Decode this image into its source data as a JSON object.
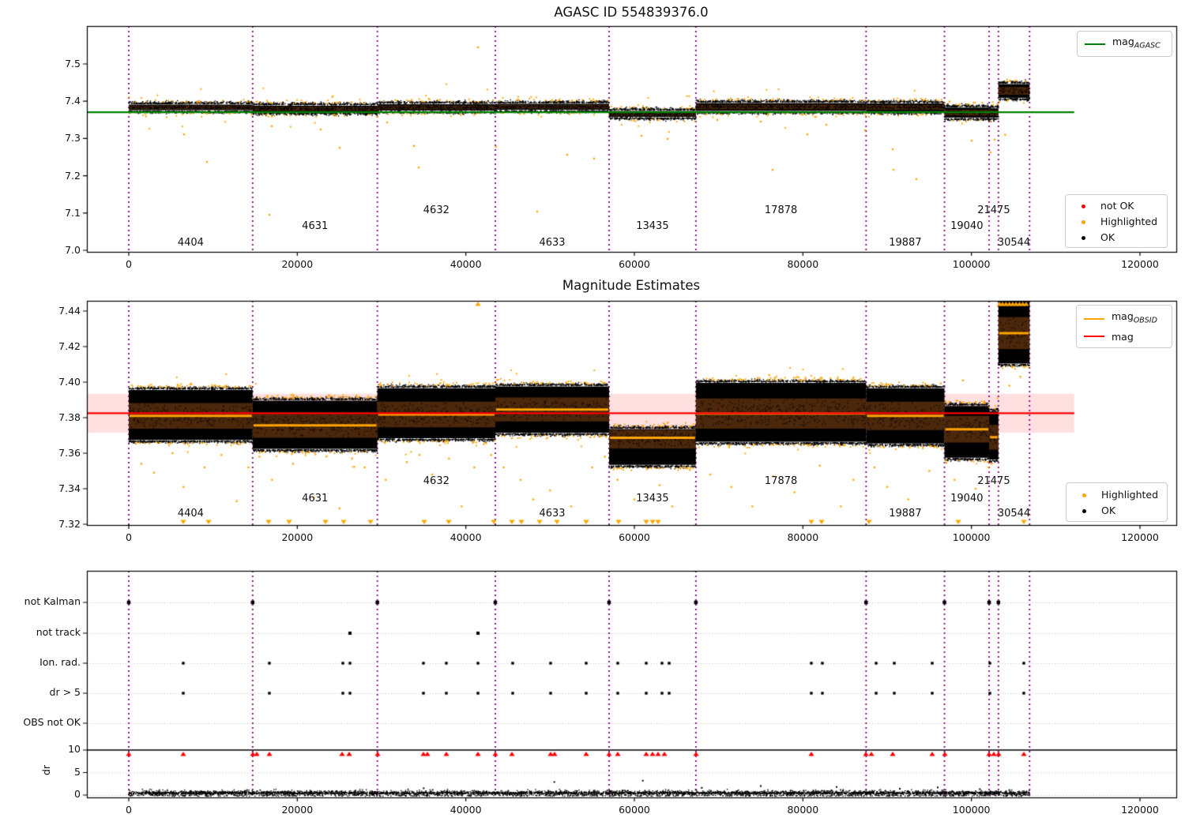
{
  "colors": {
    "green": "#008000",
    "orange": "#ffa500",
    "red": "#ff0000",
    "purple": "#800080",
    "black": "#000000",
    "pink_band": "rgba(255,0,0,0.12)",
    "band_brown": "rgba(150,78,22,0.5)",
    "grid_gray": "#c3c3c3"
  },
  "chart_data": {
    "type": "scatter",
    "x_axis": {
      "ticks": [
        0,
        20000,
        40000,
        60000,
        80000,
        100000,
        120000
      ],
      "range": [
        -4970,
        124310
      ]
    },
    "segment_boundaries": [
      0,
      14700,
      29500,
      43500,
      57000,
      67300,
      87500,
      96800,
      102100,
      103200,
      106900
    ],
    "segments": [
      {
        "obsid": "4404",
        "u0": 0,
        "u1": 14700,
        "top_band": [
          7.374,
          7.393
        ],
        "mid_band": [
          7.367,
          7.396
        ],
        "mag_obsid": 7.381
      },
      {
        "obsid": "4631",
        "u0": 14700,
        "u1": 29500,
        "top_band": [
          7.369,
          7.39
        ],
        "mid_band": [
          7.362,
          7.39
        ],
        "mag_obsid": 7.3757
      },
      {
        "obsid": "4632",
        "u0": 29500,
        "u1": 43500,
        "top_band": [
          7.373,
          7.394
        ],
        "mid_band": [
          7.368,
          7.397
        ],
        "mag_obsid": 7.3818
      },
      {
        "obsid": "4633",
        "u0": 43500,
        "u1": 57000,
        "top_band": [
          7.375,
          7.395
        ],
        "mid_band": [
          7.371,
          7.398
        ],
        "mag_obsid": 7.3846
      },
      {
        "obsid": "13435",
        "u0": 57000,
        "u1": 67300,
        "top_band": [
          7.356,
          7.376
        ],
        "mid_band": [
          7.353,
          7.374
        ],
        "mag_obsid": 7.3687
      },
      {
        "obsid": "17878",
        "u0": 67300,
        "u1": 87500,
        "top_band": [
          7.372,
          7.397
        ],
        "mid_band": [
          7.366,
          7.4
        ],
        "mag_obsid": 7.3823
      },
      {
        "obsid": "19887",
        "u0": 87500,
        "u1": 96800,
        "top_band": [
          7.371,
          7.396
        ],
        "mid_band": [
          7.365,
          7.397
        ],
        "mag_obsid": 7.381
      },
      {
        "obsid": "19040",
        "u0": 96800,
        "u1": 102100,
        "top_band": [
          7.354,
          7.385
        ],
        "mid_band": [
          7.357,
          7.387
        ],
        "mag_obsid": 7.3735
      },
      {
        "obsid": "21475",
        "u0": 102100,
        "u1": 103200,
        "top_band": [
          7.354,
          7.383
        ],
        "mid_band": [
          7.356,
          7.384
        ],
        "mag_obsid": 7.369
      },
      {
        "obsid": "30544",
        "u0": 103200,
        "u1": 106900,
        "top_band": [
          7.407,
          7.448
        ],
        "mid_band": [
          7.41,
          7.446
        ],
        "mag_obsid": 7.4276
      }
    ],
    "top_plot": {
      "title": "AGASC ID 554839376.0",
      "yticks": [
        7.0,
        7.1,
        7.2,
        7.3,
        7.4,
        7.5
      ],
      "ylim": [
        6.996,
        7.602
      ],
      "mag_agasc": 7.3705,
      "line_end_u": 112200,
      "orange_outliers": [
        [
          6563,
          7.311
        ],
        [
          9281,
          7.237
        ],
        [
          16688,
          7.095
        ],
        [
          16969,
          7.333
        ],
        [
          22781,
          7.324
        ],
        [
          25031,
          7.275
        ],
        [
          30656,
          7.343
        ],
        [
          33844,
          7.28
        ],
        [
          34406,
          7.222
        ],
        [
          41438,
          7.545
        ],
        [
          43594,
          7.278
        ],
        [
          48469,
          7.104
        ],
        [
          52031,
          7.256
        ],
        [
          55219,
          7.246
        ],
        [
          60844,
          7.307
        ],
        [
          63938,
          7.299
        ],
        [
          69844,
          7.35
        ],
        [
          75000,
          7.345
        ],
        [
          76406,
          7.216
        ],
        [
          80531,
          7.311
        ],
        [
          82781,
          7.337
        ],
        [
          87375,
          7.322
        ],
        [
          90656,
          7.271
        ],
        [
          90750,
          7.216
        ],
        [
          93469,
          7.191
        ],
        [
          100031,
          7.294
        ],
        [
          102281,
          7.263
        ],
        [
          102750,
          7.297
        ],
        [
          104000,
          7.31
        ]
      ]
    },
    "middle_plot": {
      "title": "Magnitude Estimates",
      "yticks": [
        7.32,
        7.34,
        7.36,
        7.38,
        7.4,
        7.42,
        7.44
      ],
      "ylim": [
        7.3196,
        7.4458
      ],
      "mag": 7.3825,
      "mag_err_band": [
        7.3715,
        7.3935
      ],
      "line_end_u": 112200,
      "orange_outliers": [
        [
          1500,
          7.354
        ],
        [
          3000,
          7.349
        ],
        [
          5200,
          7.36
        ],
        [
          6500,
          7.341
        ],
        [
          9000,
          7.352
        ],
        [
          11000,
          7.359
        ],
        [
          12800,
          7.333
        ],
        [
          14200,
          7.352
        ],
        [
          15500,
          7.358
        ],
        [
          17000,
          7.345
        ],
        [
          19500,
          7.354
        ],
        [
          21000,
          7.36
        ],
        [
          22000,
          7.335
        ],
        [
          25000,
          7.329
        ],
        [
          26500,
          7.357
        ],
        [
          28000,
          7.352
        ],
        [
          30500,
          7.345
        ],
        [
          33000,
          7.355
        ],
        [
          34500,
          7.359
        ],
        [
          36000,
          7.348
        ],
        [
          38000,
          7.357
        ],
        [
          39500,
          7.33
        ],
        [
          41000,
          7.352
        ],
        [
          43000,
          7.359
        ],
        [
          44500,
          7.352
        ],
        [
          46500,
          7.345
        ],
        [
          48000,
          7.334
        ],
        [
          50000,
          7.339
        ],
        [
          52500,
          7.33
        ],
        [
          55000,
          7.352
        ],
        [
          56500,
          7.358
        ],
        [
          58000,
          7.345
        ],
        [
          60000,
          7.334
        ],
        [
          61500,
          7.351
        ],
        [
          63000,
          7.342
        ],
        [
          64500,
          7.33
        ],
        [
          66000,
          7.352
        ],
        [
          69000,
          7.348
        ],
        [
          71500,
          7.341
        ],
        [
          74000,
          7.33
        ],
        [
          76000,
          7.404
        ],
        [
          76500,
          7.347
        ],
        [
          79000,
          7.338
        ],
        [
          82000,
          7.353
        ],
        [
          84500,
          7.33
        ],
        [
          86000,
          7.345
        ],
        [
          88500,
          7.352
        ],
        [
          90000,
          7.341
        ],
        [
          92500,
          7.334
        ],
        [
          95000,
          7.35
        ],
        [
          98000,
          7.345
        ],
        [
          99000,
          7.401
        ],
        [
          100500,
          7.34
        ],
        [
          102000,
          7.352
        ],
        [
          104500,
          7.398
        ],
        [
          105800,
          7.403
        ]
      ],
      "clip_bottom_u": [
        6469,
        9469,
        16594,
        19031,
        23344,
        25500,
        28688,
        35063,
        37969,
        43313,
        45469,
        46594,
        48750,
        50813,
        54281,
        58125,
        61406,
        62156,
        62813,
        81000,
        82219,
        87844,
        98438,
        106219
      ],
      "clip_top_u": [
        41438,
        103350,
        103700,
        104100,
        104500,
        104900,
        105300,
        105700,
        106100,
        106500
      ]
    },
    "bottom_plot": {
      "flag_rows": [
        "not Kalman",
        "not track",
        "Ion. rad.",
        "dr > 5",
        "OBS not OK"
      ],
      "ylabel": "dr",
      "dr_ticks": [
        10,
        5,
        0
      ],
      "not_kalman_u": [
        0,
        14700,
        29500,
        43500,
        57000,
        67300,
        87500,
        96800,
        102100,
        103200
      ],
      "not_track_u": [
        26250,
        41438
      ],
      "ion_rad_u": [
        6469,
        16688,
        25406,
        26250,
        34969,
        37688,
        41438,
        45563,
        50063,
        54281,
        58031,
        61406,
        63281,
        64125,
        81000,
        82313,
        88688,
        90844,
        95344,
        102188,
        106219
      ],
      "dr_gt5_u": [
        6469,
        16688,
        25406,
        26250,
        34969,
        37688,
        41438,
        45563,
        50063,
        54281,
        58031,
        61406,
        63281,
        64125,
        81000,
        82313,
        88688,
        90844,
        95344,
        102188,
        106219
      ],
      "dr10_red_u": [
        0,
        6469,
        14719,
        15188,
        16688,
        25313,
        26156,
        29531,
        34969,
        35438,
        37688,
        41438,
        43500,
        45469,
        50063,
        50531,
        54281,
        57000,
        58031,
        61406,
        62156,
        62813,
        63563,
        67313,
        81000,
        87469,
        88125,
        90656,
        95344,
        96844,
        102094,
        102656,
        103219,
        106219
      ],
      "dr_high_points": [
        [
          35000,
          1.5
        ],
        [
          50500,
          2.9
        ],
        [
          61000,
          3.2
        ],
        [
          68000,
          1.6
        ],
        [
          75000,
          2.0
        ],
        [
          84000,
          1.8
        ],
        [
          91500,
          1.4
        ],
        [
          96000,
          1.7
        ],
        [
          101000,
          1.3
        ],
        [
          104500,
          1.1
        ]
      ],
      "dr_cloud": {
        "u_min": 0,
        "u_max": 106900,
        "count": 2800
      }
    },
    "legends": {
      "top_line": [
        {
          "type": "line",
          "color": "#008000",
          "label": "mag",
          "sub": "AGASC"
        }
      ],
      "top_points": [
        {
          "type": "dot",
          "color": "#ff0000",
          "label": "not OK"
        },
        {
          "type": "dot",
          "color": "#ffa500",
          "label": "Highlighted"
        },
        {
          "type": "dot",
          "color": "#000000",
          "label": "OK"
        }
      ],
      "mid_lines": [
        {
          "type": "line",
          "color": "#ffa500",
          "label": "mag",
          "sub": "OBSID"
        },
        {
          "type": "line",
          "color": "#ff0000",
          "label": "mag"
        }
      ],
      "mid_points": [
        {
          "type": "dot",
          "color": "#ffa500",
          "label": "Highlighted"
        },
        {
          "type": "dot",
          "color": "#000000",
          "label": "OK"
        }
      ]
    }
  }
}
